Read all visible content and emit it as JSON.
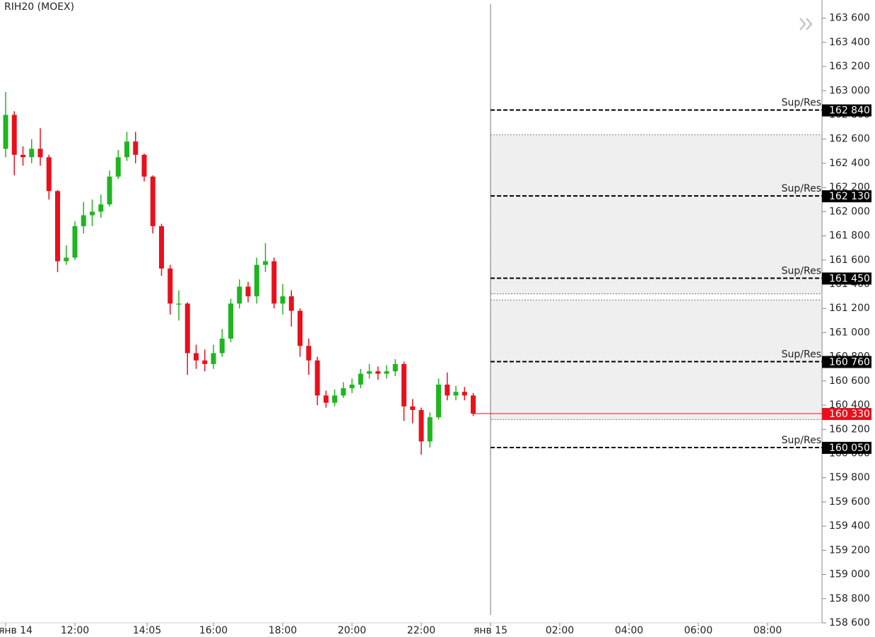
{
  "chart_data": {
    "type": "candlestick",
    "title": "RIH20 (MOEX)",
    "up_color": "#1fb51f",
    "down_color": "#e8101c",
    "x": [
      10,
      10.25,
      10.5,
      10.75,
      11,
      11.25,
      11.5,
      11.75,
      12,
      12.25,
      12.5,
      12.75,
      13,
      13.25,
      13.5,
      13.75,
      14,
      14.25,
      14.5,
      14.75,
      15,
      15.25,
      15.5,
      15.75,
      16,
      16.25,
      16.5,
      16.75,
      17,
      17.25,
      17.5,
      17.75,
      18,
      18.25,
      18.5,
      18.75,
      19,
      19.25,
      19.5,
      19.75,
      20,
      20.25,
      20.5,
      20.75,
      21,
      21.25,
      21.5,
      21.75,
      22,
      22.25,
      22.5,
      22.75,
      23,
      23.25,
      23.5
    ],
    "open": [
      162520,
      162800,
      162470,
      162450,
      162520,
      162450,
      162170,
      161590,
      161620,
      161880,
      161970,
      162000,
      162060,
      162290,
      162450,
      162580,
      162470,
      162290,
      161880,
      161530,
      161240,
      161240,
      160830,
      160770,
      160740,
      160830,
      160950,
      161240,
      161380,
      161300,
      161560,
      161590,
      161240,
      161300,
      161180,
      160890,
      160770,
      160480,
      160420,
      160480,
      160540,
      160570,
      160660,
      160680,
      160660,
      160680,
      160740,
      160390,
      160360,
      160100,
      160300,
      160570,
      160480,
      160510,
      160480
    ],
    "high": [
      162990,
      162830,
      162540,
      162600,
      162690,
      162470,
      162180,
      161720,
      161920,
      162080,
      162100,
      162140,
      162340,
      162510,
      162660,
      162660,
      162480,
      162300,
      161900,
      161560,
      161350,
      161250,
      160900,
      160860,
      160900,
      161030,
      161280,
      161440,
      161420,
      161620,
      161740,
      161620,
      161400,
      161350,
      161200,
      160950,
      160800,
      160520,
      160530,
      160590,
      160620,
      160700,
      160740,
      160720,
      160730,
      160780,
      160760,
      160450,
      160380,
      160340,
      160620,
      160670,
      160560,
      160550,
      160500
    ],
    "low": [
      162450,
      162300,
      162380,
      162400,
      162380,
      162100,
      161500,
      161560,
      161600,
      161820,
      161880,
      161950,
      162040,
      162270,
      162420,
      162400,
      162250,
      161820,
      161470,
      161150,
      161100,
      160650,
      160700,
      160680,
      160700,
      160800,
      160920,
      161200,
      161250,
      161240,
      161500,
      161200,
      161150,
      161050,
      160800,
      160650,
      160400,
      160380,
      160390,
      160460,
      160500,
      160540,
      160620,
      160610,
      160620,
      160640,
      160270,
      160250,
      159990,
      160050,
      160280,
      160440,
      160440,
      160440,
      160310
    ],
    "close": [
      162800,
      162470,
      162450,
      162520,
      162450,
      162170,
      161590,
      161620,
      161880,
      161970,
      162000,
      162060,
      162290,
      162450,
      162580,
      162470,
      162290,
      161880,
      161530,
      161240,
      161240,
      160830,
      160770,
      160740,
      160830,
      160950,
      161240,
      161380,
      161300,
      161560,
      161590,
      161240,
      161300,
      161180,
      160890,
      160770,
      160480,
      160420,
      160480,
      160540,
      160570,
      160660,
      160680,
      160660,
      160680,
      160740,
      160390,
      160360,
      160100,
      160300,
      160570,
      160480,
      160510,
      160480,
      160330
    ],
    "xlim": [
      10,
      33.57
    ],
    "xticks": [
      {
        "value": 10,
        "label": "янв 14"
      },
      {
        "value": 12,
        "label": "12:00"
      },
      {
        "value": 14.083,
        "label": "14:05"
      },
      {
        "value": 16,
        "label": "16:00"
      },
      {
        "value": 18,
        "label": "18:00"
      },
      {
        "value": 20,
        "label": "20:00"
      },
      {
        "value": 22,
        "label": "22:00"
      },
      {
        "value": 24,
        "label": "янв 15"
      },
      {
        "value": 26,
        "label": "02:00"
      },
      {
        "value": 28,
        "label": "04:00"
      },
      {
        "value": 30,
        "label": "06:00"
      },
      {
        "value": 32,
        "label": "08:00"
      }
    ],
    "ylim": [
      158600,
      163750
    ],
    "yticks": [
      {
        "value": 158600,
        "label": "158 600"
      },
      {
        "value": 158800,
        "label": "158 800"
      },
      {
        "value": 159000,
        "label": "159 000"
      },
      {
        "value": 159200,
        "label": "159 200"
      },
      {
        "value": 159400,
        "label": "159 400"
      },
      {
        "value": 159600,
        "label": "159 600"
      },
      {
        "value": 159800,
        "label": "159 800"
      },
      {
        "value": 160000,
        "label": "160 000"
      },
      {
        "value": 160200,
        "label": "160 200"
      },
      {
        "value": 160400,
        "label": "160 400"
      },
      {
        "value": 160600,
        "label": "160 600"
      },
      {
        "value": 160800,
        "label": "160 800"
      },
      {
        "value": 161000,
        "label": "161 000"
      },
      {
        "value": 161200,
        "label": "161 200"
      },
      {
        "value": 161400,
        "label": "161 400"
      },
      {
        "value": 161600,
        "label": "161 600"
      },
      {
        "value": 161800,
        "label": "161 800"
      },
      {
        "value": 162000,
        "label": "162 000"
      },
      {
        "value": 162200,
        "label": "162 200"
      },
      {
        "value": 162400,
        "label": "162 400"
      },
      {
        "value": 162600,
        "label": "162 600"
      },
      {
        "value": 162800,
        "label": "162 800"
      },
      {
        "value": 163000,
        "label": "163 000"
      },
      {
        "value": 163200,
        "label": "163 200"
      },
      {
        "value": 163400,
        "label": "163 400"
      },
      {
        "value": 163600,
        "label": "163 600"
      }
    ],
    "now_x": 24,
    "level_label": "Sup/Res",
    "levels": [
      {
        "value": 162840,
        "label": "162 840"
      },
      {
        "value": 162130,
        "label": "162 130"
      },
      {
        "value": 161450,
        "label": "161 450"
      },
      {
        "value": 160760,
        "label": "160 760"
      },
      {
        "value": 160050,
        "label": "160 050"
      }
    ],
    "zones": [
      [
        162635,
        161320
      ],
      [
        161270,
        160280
      ]
    ],
    "last_price": {
      "value": 160330,
      "label": "160 330"
    },
    "last_color": "#e8101c"
  }
}
